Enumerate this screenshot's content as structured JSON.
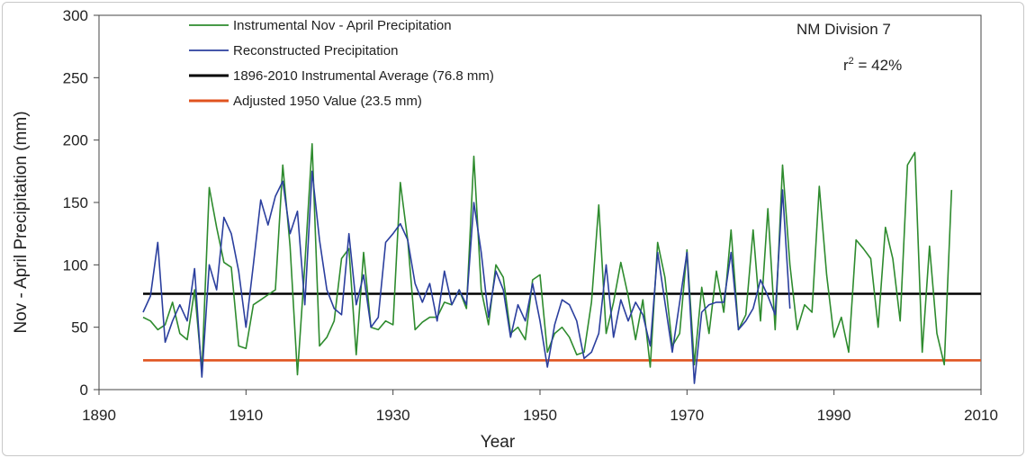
{
  "chart_data": {
    "type": "line",
    "title": "",
    "xlabel": "Year",
    "ylabel": "Nov - April Precipitation (mm)",
    "xlim": [
      1890,
      2010
    ],
    "ylim": [
      0,
      300
    ],
    "x_ticks": [
      "1890",
      "1910",
      "1930",
      "1950",
      "1970",
      "1990",
      "2010"
    ],
    "y_ticks": [
      "0",
      "50",
      "100",
      "150",
      "200",
      "250",
      "300"
    ],
    "grid": false,
    "legend_position": "top-left",
    "annotations": {
      "division": "NM Division 7",
      "r2_prefix": "r",
      "r2_sup": "2",
      "r2_suffix": " = 42%"
    },
    "series": [
      {
        "name": "Instrumental Nov - April Precipitation",
        "color": "#2e8b2e",
        "x_start": 1896,
        "values": [
          58,
          55,
          48,
          52,
          70,
          45,
          40,
          80,
          15,
          162,
          130,
          102,
          98,
          35,
          33,
          68,
          72,
          76,
          80,
          180,
          115,
          12,
          100,
          197,
          35,
          42,
          55,
          105,
          113,
          28,
          110,
          50,
          48,
          55,
          52,
          166,
          120,
          48,
          54,
          58,
          58,
          70,
          68,
          80,
          65,
          187,
          80,
          52,
          100,
          90,
          45,
          50,
          40,
          88,
          92,
          30,
          45,
          50,
          42,
          28,
          30,
          70,
          148,
          45,
          70,
          102,
          75,
          40,
          72,
          18,
          118,
          90,
          35,
          45,
          112,
          20,
          82,
          45,
          95,
          62,
          128,
          48,
          60,
          128,
          55,
          145,
          48,
          180,
          100,
          48,
          68,
          62,
          163,
          92,
          42,
          58,
          30,
          120,
          113,
          105,
          50,
          130,
          105,
          55,
          180,
          190,
          30,
          115,
          45,
          20,
          160
        ],
        "interpolation": "linear"
      },
      {
        "name": "Reconstructed Precipitation",
        "color": "#2b3f9e",
        "x_start": 1896,
        "values": [
          62,
          75,
          118,
          38,
          55,
          68,
          55,
          97,
          10,
          100,
          80,
          138,
          125,
          95,
          50,
          100,
          152,
          132,
          155,
          167,
          125,
          143,
          68,
          175,
          120,
          80,
          65,
          60,
          125,
          68,
          92,
          50,
          58,
          118,
          125,
          133,
          120,
          85,
          70,
          85,
          55,
          95,
          68,
          80,
          68,
          150,
          110,
          58,
          95,
          80,
          42,
          68,
          55,
          85,
          55,
          18,
          52,
          72,
          68,
          55,
          25,
          30,
          45,
          100,
          42,
          72,
          55,
          70,
          60,
          35,
          110,
          70,
          30,
          70,
          110,
          5,
          62,
          68,
          70,
          70,
          110,
          48,
          55,
          65,
          88,
          75,
          60,
          160,
          65
        ]
      },
      {
        "name": "1896-2010 Instrumental Average (76.8 mm)",
        "color": "#000000",
        "x": [
          1896,
          2010
        ],
        "values": [
          76.8,
          76.8
        ]
      },
      {
        "name": "Adjusted 1950 Value (23.5 mm)",
        "color": "#e0531f",
        "x": [
          1896,
          2010
        ],
        "values": [
          23.5,
          23.5
        ]
      }
    ]
  }
}
